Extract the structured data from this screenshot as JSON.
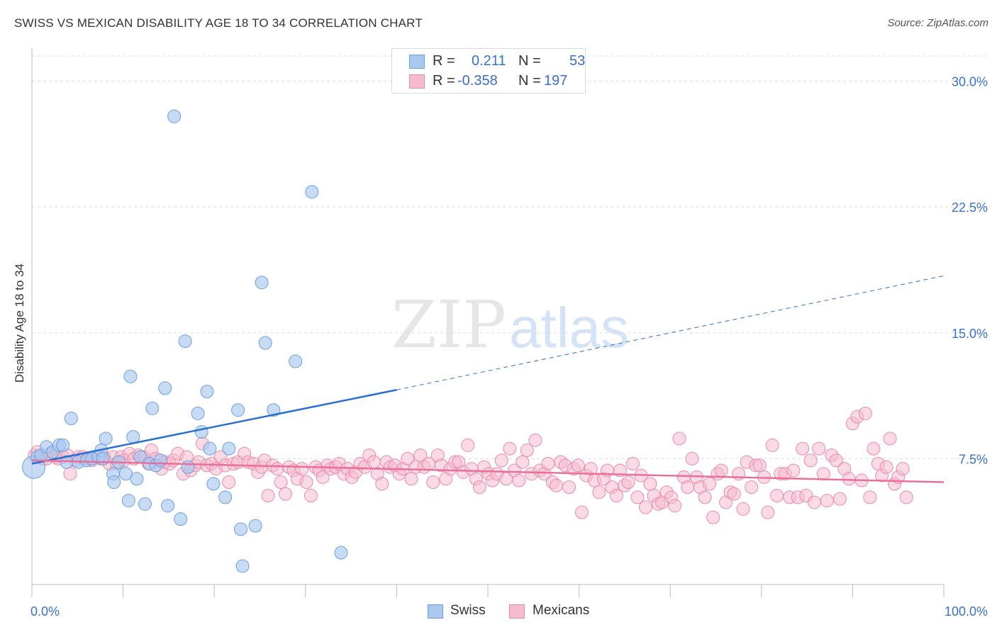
{
  "title": "SWISS VS MEXICAN DISABILITY AGE 18 TO 34 CORRELATION CHART",
  "source": "Source: ZipAtlas.com",
  "watermark": {
    "zip": "ZIP",
    "atlas": "atlas"
  },
  "legend": {
    "rows": [
      {
        "r_label": "R =",
        "r_value": "0.211",
        "n_label": "N =",
        "n_value": "53",
        "color": "#a9c8ef",
        "stroke": "#6d9fdc"
      },
      {
        "r_label": "R =",
        "r_value": "-0.358",
        "n_label": "N =",
        "n_value": "197",
        "color": "#f6bccd",
        "stroke": "#e98aa8"
      }
    ]
  },
  "bottom_legend": {
    "swiss": "Swiss",
    "mexicans": "Mexicans"
  },
  "colors": {
    "swiss_fill": "#a9c8ef",
    "swiss_stroke": "#6d9fdc",
    "swiss_line": "#2a6fd0",
    "mex_fill": "#f6bccd",
    "mex_stroke": "#e98aa8",
    "mex_line": "#e8709a",
    "axis_text": "#3a73c4",
    "grid": "#dddddd"
  },
  "chart_data": {
    "type": "scatter",
    "title": "SWISS VS MEXICAN DISABILITY AGE 18 TO 34 CORRELATION CHART",
    "xlabel": "",
    "ylabel": "Disability Age 18 to 34",
    "xlim": [
      0,
      100
    ],
    "ylim": [
      0,
      31.5
    ],
    "x_tick_labels": [
      "0.0%",
      "100.0%"
    ],
    "y_ticks": [
      7.5,
      15.0,
      22.5,
      30.0
    ],
    "y_tick_labels": [
      "7.5%",
      "15.0%",
      "22.5%",
      "30.0%"
    ],
    "grid": true,
    "legend_position": "top-center",
    "series": [
      {
        "name": "Swiss",
        "r": 0.211,
        "n": 53,
        "trend": {
          "x0": 0,
          "y0": 7.2,
          "x1": 40,
          "y1": 11.6,
          "dashed_to_x": 100,
          "dashed_to_y": 18.4
        },
        "points": [
          [
            0.2,
            7.0
          ],
          [
            0.6,
            7.6
          ],
          [
            1,
            7.7
          ],
          [
            1.6,
            8.2
          ],
          [
            2.3,
            7.9
          ],
          [
            3,
            8.3
          ],
          [
            3.4,
            8.3
          ],
          [
            3.8,
            7.3
          ],
          [
            4.3,
            9.9
          ],
          [
            5.1,
            7.3
          ],
          [
            6,
            7.4
          ],
          [
            6.6,
            7.5
          ],
          [
            7.3,
            7.6
          ],
          [
            7.6,
            8.0
          ],
          [
            7.8,
            7.5
          ],
          [
            8.1,
            8.7
          ],
          [
            8.9,
            6.6
          ],
          [
            9,
            6.1
          ],
          [
            9.5,
            7.3
          ],
          [
            10.3,
            6.6
          ],
          [
            10.6,
            5.0
          ],
          [
            10.8,
            12.4
          ],
          [
            11.1,
            8.8
          ],
          [
            11.5,
            6.3
          ],
          [
            11.9,
            7.6
          ],
          [
            12.4,
            4.8
          ],
          [
            12.9,
            7.2
          ],
          [
            13.2,
            10.5
          ],
          [
            13.6,
            7.1
          ],
          [
            14.1,
            7.4
          ],
          [
            14.6,
            11.7
          ],
          [
            14.9,
            4.7
          ],
          [
            15.6,
            27.9
          ],
          [
            16.3,
            3.9
          ],
          [
            16.8,
            14.5
          ],
          [
            17.1,
            7.0
          ],
          [
            18.2,
            10.2
          ],
          [
            18.6,
            9.1
          ],
          [
            19.2,
            11.5
          ],
          [
            19.5,
            8.1
          ],
          [
            19.9,
            6.0
          ],
          [
            21.2,
            5.2
          ],
          [
            21.6,
            8.1
          ],
          [
            22.6,
            10.4
          ],
          [
            22.9,
            3.3
          ],
          [
            23.1,
            1.1
          ],
          [
            24.5,
            3.5
          ],
          [
            25.2,
            18.0
          ],
          [
            25.6,
            14.4
          ],
          [
            26.5,
            10.4
          ],
          [
            28.9,
            13.3
          ],
          [
            30.7,
            23.4
          ],
          [
            33.9,
            1.9
          ]
        ]
      },
      {
        "name": "Mexicans",
        "r": -0.358,
        "n": 197,
        "trend": {
          "x0": 0,
          "y0": 7.4,
          "x1": 100,
          "y1": 6.1
        },
        "points": [
          [
            0.3,
            7.7
          ],
          [
            0.6,
            7.9
          ],
          [
            1.2,
            7.5
          ],
          [
            1.6,
            7.5
          ],
          [
            2,
            7.8
          ],
          [
            2.6,
            7.6
          ],
          [
            2.9,
            7.5
          ],
          [
            3.4,
            7.6
          ],
          [
            3.9,
            7.7
          ],
          [
            4.2,
            6.6
          ],
          [
            4.7,
            7.4
          ],
          [
            5.1,
            7.6
          ],
          [
            5.6,
            7.6
          ],
          [
            6.1,
            7.5
          ],
          [
            6.6,
            7.4
          ],
          [
            7.1,
            7.6
          ],
          [
            7.6,
            7.5
          ],
          [
            7.9,
            7.6
          ],
          [
            8.5,
            7.2
          ],
          [
            8.9,
            7.6
          ],
          [
            9.3,
            7.2
          ],
          [
            9.8,
            7.6
          ],
          [
            10.1,
            7.4
          ],
          [
            10.7,
            7.8
          ],
          [
            11.2,
            7.5
          ],
          [
            11.7,
            7.7
          ],
          [
            12.3,
            7.6
          ],
          [
            12.8,
            7.2
          ],
          [
            13.1,
            8.0
          ],
          [
            13.6,
            7.5
          ],
          [
            14.2,
            6.9
          ],
          [
            14.6,
            7.3
          ],
          [
            15.1,
            7.2
          ],
          [
            15.5,
            7.4
          ],
          [
            16,
            7.8
          ],
          [
            16.6,
            6.6
          ],
          [
            17,
            7.6
          ],
          [
            17.4,
            6.8
          ],
          [
            17.9,
            7.1
          ],
          [
            18.3,
            7.3
          ],
          [
            18.7,
            8.4
          ],
          [
            19.2,
            7.1
          ],
          [
            19.7,
            7.2
          ],
          [
            20.2,
            6.9
          ],
          [
            20.7,
            7.6
          ],
          [
            21.2,
            7.1
          ],
          [
            21.6,
            6.1
          ],
          [
            22.1,
            7.2
          ],
          [
            22.6,
            7.3
          ],
          [
            23.3,
            7.8
          ],
          [
            23.7,
            7.3
          ],
          [
            24.3,
            7.2
          ],
          [
            24.8,
            6.7
          ],
          [
            25.2,
            7.0
          ],
          [
            25.5,
            7.4
          ],
          [
            25.9,
            5.3
          ],
          [
            26.4,
            7.1
          ],
          [
            26.9,
            6.9
          ],
          [
            27.3,
            6.1
          ],
          [
            27.8,
            5.4
          ],
          [
            28.2,
            7.0
          ],
          [
            28.7,
            6.8
          ],
          [
            29.1,
            6.3
          ],
          [
            29.6,
            6.9
          ],
          [
            30.1,
            6.1
          ],
          [
            30.6,
            5.3
          ],
          [
            31.1,
            7.0
          ],
          [
            31.5,
            6.8
          ],
          [
            31.9,
            6.4
          ],
          [
            32.4,
            7.1
          ],
          [
            32.8,
            6.9
          ],
          [
            33.3,
            7.0
          ],
          [
            33.7,
            7.2
          ],
          [
            34.2,
            6.6
          ],
          [
            34.6,
            6.9
          ],
          [
            35.1,
            6.4
          ],
          [
            35.5,
            6.7
          ],
          [
            36,
            7.2
          ],
          [
            36.5,
            7.0
          ],
          [
            37,
            7.7
          ],
          [
            37.5,
            7.3
          ],
          [
            37.9,
            6.6
          ],
          [
            38.4,
            6.0
          ],
          [
            38.9,
            7.3
          ],
          [
            39.3,
            7.0
          ],
          [
            39.8,
            7.1
          ],
          [
            40.3,
            6.6
          ],
          [
            40.7,
            6.9
          ],
          [
            41.2,
            7.5
          ],
          [
            41.6,
            6.3
          ],
          [
            42.1,
            7.0
          ],
          [
            42.6,
            7.7
          ],
          [
            43,
            7.0
          ],
          [
            43.5,
            7.2
          ],
          [
            44,
            6.1
          ],
          [
            44.5,
            7.7
          ],
          [
            44.9,
            7.1
          ],
          [
            45.4,
            6.3
          ],
          [
            45.9,
            6.9
          ],
          [
            46.4,
            7.3
          ],
          [
            46.8,
            7.3
          ],
          [
            47.3,
            6.7
          ],
          [
            47.8,
            8.3
          ],
          [
            48.2,
            6.9
          ],
          [
            48.7,
            6.3
          ],
          [
            49.1,
            5.8
          ],
          [
            49.6,
            7.0
          ],
          [
            50.1,
            6.6
          ],
          [
            50.5,
            6.2
          ],
          [
            51,
            6.6
          ],
          [
            51.5,
            7.4
          ],
          [
            52,
            6.3
          ],
          [
            52.4,
            8.1
          ],
          [
            52.9,
            6.8
          ],
          [
            53.4,
            6.2
          ],
          [
            53.8,
            7.3
          ],
          [
            54.3,
            8.0
          ],
          [
            54.8,
            6.6
          ],
          [
            55.2,
            8.6
          ],
          [
            55.7,
            6.8
          ],
          [
            56.2,
            6.6
          ],
          [
            56.6,
            7.2
          ],
          [
            57.1,
            6.1
          ],
          [
            57.5,
            5.9
          ],
          [
            58,
            7.3
          ],
          [
            58.5,
            7.1
          ],
          [
            58.9,
            5.8
          ],
          [
            59.4,
            6.9
          ],
          [
            59.9,
            7.1
          ],
          [
            60.3,
            4.3
          ],
          [
            60.8,
            6.5
          ],
          [
            61.3,
            6.9
          ],
          [
            61.7,
            6.2
          ],
          [
            62.2,
            5.5
          ],
          [
            62.7,
            6.3
          ],
          [
            63.1,
            6.8
          ],
          [
            63.6,
            5.8
          ],
          [
            64.1,
            5.3
          ],
          [
            64.5,
            6.8
          ],
          [
            65,
            5.9
          ],
          [
            65.4,
            6.1
          ],
          [
            65.9,
            7.2
          ],
          [
            66.4,
            5.2
          ],
          [
            66.8,
            6.5
          ],
          [
            67.3,
            4.6
          ],
          [
            67.8,
            6.0
          ],
          [
            68.2,
            5.3
          ],
          [
            68.7,
            4.8
          ],
          [
            69.1,
            4.9
          ],
          [
            69.6,
            5.5
          ],
          [
            70.1,
            5.2
          ],
          [
            70.5,
            4.7
          ],
          [
            71,
            8.7
          ],
          [
            71.5,
            6.4
          ],
          [
            71.9,
            5.8
          ],
          [
            72.4,
            7.5
          ],
          [
            72.9,
            6.4
          ],
          [
            73.3,
            5.8
          ],
          [
            73.8,
            5.2
          ],
          [
            74.3,
            6.0
          ],
          [
            74.7,
            4.0
          ],
          [
            75.2,
            6.6
          ],
          [
            75.6,
            6.8
          ],
          [
            76.1,
            4.9
          ],
          [
            76.6,
            5.5
          ],
          [
            77,
            5.4
          ],
          [
            77.5,
            6.6
          ],
          [
            78,
            4.5
          ],
          [
            78.4,
            7.3
          ],
          [
            78.9,
            5.8
          ],
          [
            79.4,
            7.1
          ],
          [
            79.8,
            7.1
          ],
          [
            80.3,
            6.4
          ],
          [
            80.7,
            4.3
          ],
          [
            81.2,
            8.3
          ],
          [
            81.7,
            5.3
          ],
          [
            82.1,
            6.6
          ],
          [
            82.6,
            6.6
          ],
          [
            83.1,
            5.2
          ],
          [
            83.5,
            6.8
          ],
          [
            84,
            5.2
          ],
          [
            84.5,
            8.1
          ],
          [
            84.9,
            5.3
          ],
          [
            85.4,
            7.4
          ],
          [
            85.8,
            4.9
          ],
          [
            86.3,
            8.1
          ],
          [
            86.8,
            6.6
          ],
          [
            87.2,
            5.0
          ],
          [
            87.7,
            7.7
          ],
          [
            88.2,
            7.4
          ],
          [
            88.6,
            5.1
          ],
          [
            89.1,
            6.9
          ],
          [
            89.6,
            6.3
          ],
          [
            90,
            9.6
          ],
          [
            90.5,
            10.0
          ],
          [
            91,
            6.2
          ],
          [
            91.4,
            10.2
          ],
          [
            91.9,
            5.2
          ],
          [
            92.3,
            8.1
          ],
          [
            92.8,
            7.2
          ],
          [
            93.2,
            6.5
          ],
          [
            93.7,
            7.0
          ],
          [
            94.1,
            8.7
          ],
          [
            94.6,
            6.0
          ],
          [
            95.0,
            6.4
          ],
          [
            95.5,
            6.9
          ],
          [
            95.9,
            5.2
          ]
        ]
      }
    ]
  }
}
